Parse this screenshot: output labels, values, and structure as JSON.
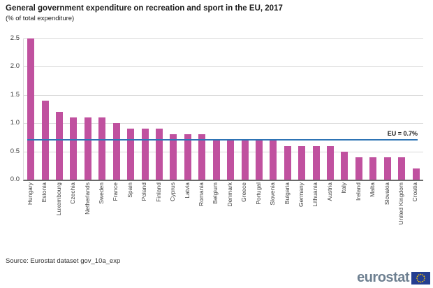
{
  "header": {
    "title": "General government expenditure on recreation and sport in the EU, 2017",
    "subtitle": "(% of total expenditure)"
  },
  "chart_data": {
    "type": "bar",
    "categories": [
      "Hungary",
      "Estonia",
      "Luxembourg",
      "Czechia",
      "Netherlands",
      "Sweden",
      "France",
      "Spain",
      "Poland",
      "Finland",
      "Cyprus",
      "Latvia",
      "Romania",
      "Belgium",
      "Denmark",
      "Greece",
      "Portugal",
      "Slovenia",
      "Bulgaria",
      "Germany",
      "Lithuania",
      "Austria",
      "Italy",
      "Ireland",
      "Malta",
      "Slovakia",
      "United Kingdom",
      "Croatia"
    ],
    "values": [
      2.5,
      1.4,
      1.2,
      1.1,
      1.1,
      1.1,
      1.0,
      0.9,
      0.9,
      0.9,
      0.8,
      0.8,
      0.8,
      0.7,
      0.7,
      0.7,
      0.7,
      0.7,
      0.6,
      0.6,
      0.6,
      0.6,
      0.5,
      0.4,
      0.4,
      0.4,
      0.4,
      0.2
    ],
    "title": "General government expenditure on recreation and sport in the EU, 2017",
    "subtitle": "(% of total expenditure)",
    "xlabel": "",
    "ylabel": "",
    "ylim": [
      0,
      2.5
    ],
    "yticks": [
      0.0,
      0.5,
      1.0,
      1.5,
      2.0,
      2.5
    ],
    "ytick_labels": [
      "0.0",
      "0.5",
      "1.0",
      "1.5",
      "2.0",
      "2.5"
    ],
    "grid": true,
    "legend": "none",
    "bar_color": "#c0519f",
    "reference_line": {
      "label": "EU = 0.7%",
      "value": 0.7,
      "color": "#2e74b5"
    }
  },
  "footer": {
    "source": "Source: Eurostat dataset gov_10a_exp",
    "logo_text": "eurostat"
  },
  "colors": {
    "bar": "#c0519f",
    "reference_line": "#2e74b5",
    "gridline": "#d9d9d9",
    "axis": "#6b6b6b",
    "tick_text": "#404040",
    "logo_text": "#6e8091",
    "flag_blue": "#243e90",
    "flag_stars": "#ffcc00"
  }
}
